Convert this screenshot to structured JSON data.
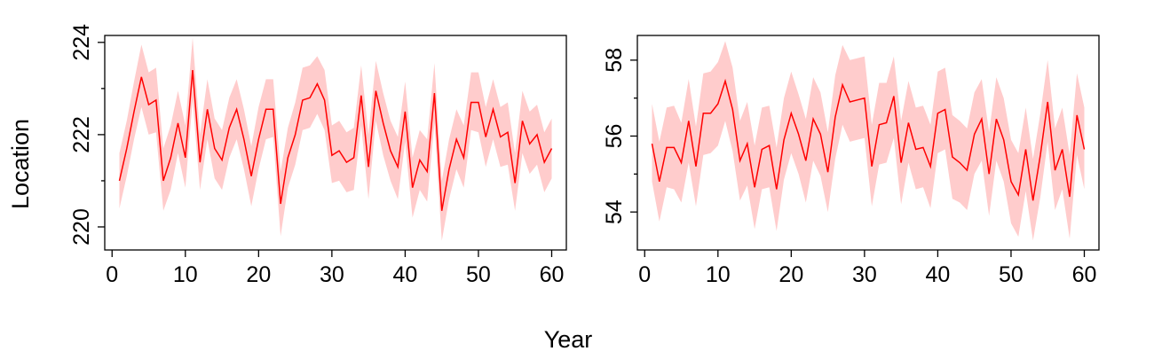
{
  "figure": {
    "xlabel": "Year",
    "ylabel": "Location"
  },
  "chart_data": [
    {
      "type": "line",
      "xlabel": "Year",
      "ylabel": "Location",
      "xlim": [
        -1,
        62
      ],
      "ylim": [
        219.5,
        224.15
      ],
      "xticks": [
        0,
        10,
        20,
        30,
        40,
        50,
        60
      ],
      "yticks": [
        220,
        222,
        224
      ],
      "minor_yticks": [
        221,
        223
      ],
      "colors": {
        "line": "#ff0000",
        "band": "#ffcccc"
      },
      "series": [
        {
          "x": [
            1,
            2,
            3,
            4,
            5,
            6,
            7,
            8,
            9,
            10,
            11,
            12,
            13,
            14,
            15,
            16,
            17,
            18,
            19,
            20,
            21,
            22,
            23,
            24,
            25,
            26,
            27,
            28,
            29,
            30,
            31,
            32,
            33,
            34,
            35,
            36,
            37,
            38,
            39,
            40,
            41,
            42,
            43,
            44,
            45,
            46,
            47,
            48,
            49,
            50,
            51,
            52,
            53,
            54,
            55,
            56,
            57,
            58,
            59,
            60
          ],
          "values": [
            221.0,
            221.7,
            222.5,
            223.25,
            222.65,
            222.75,
            221.0,
            221.5,
            222.25,
            221.5,
            223.4,
            221.4,
            222.55,
            221.7,
            221.45,
            222.15,
            222.55,
            221.9,
            221.1,
            221.9,
            222.55,
            222.55,
            220.5,
            221.5,
            222.0,
            222.75,
            222.8,
            223.1,
            222.75,
            221.55,
            221.65,
            221.4,
            221.5,
            222.85,
            221.3,
            222.95,
            222.25,
            221.65,
            221.3,
            222.5,
            220.85,
            221.45,
            221.2,
            222.9,
            220.35,
            221.25,
            221.9,
            221.5,
            222.7,
            222.7,
            221.95,
            222.55,
            221.95,
            222.05,
            220.95,
            222.3,
            221.8,
            222.0,
            221.4,
            221.7
          ],
          "lower": [
            220.4,
            221.1,
            221.9,
            222.6,
            222.0,
            222.05,
            220.35,
            220.8,
            221.6,
            220.85,
            222.75,
            220.8,
            221.9,
            221.05,
            220.8,
            221.5,
            221.9,
            221.25,
            220.45,
            221.25,
            221.9,
            221.95,
            219.8,
            220.85,
            221.35,
            222.1,
            222.15,
            222.45,
            222.1,
            220.95,
            221.0,
            220.75,
            220.8,
            222.2,
            220.6,
            222.3,
            221.55,
            221.0,
            220.6,
            221.85,
            220.2,
            220.8,
            220.55,
            222.25,
            219.7,
            220.6,
            221.25,
            220.85,
            222.1,
            222.05,
            221.3,
            221.9,
            221.3,
            221.35,
            220.35,
            221.6,
            221.15,
            221.35,
            220.75,
            221.05
          ],
          "upper": [
            221.6,
            222.3,
            223.15,
            223.95,
            223.35,
            223.45,
            221.7,
            222.2,
            222.95,
            222.2,
            224.1,
            222.0,
            223.2,
            222.35,
            222.1,
            222.8,
            223.2,
            222.55,
            221.75,
            222.6,
            223.2,
            223.2,
            221.2,
            222.15,
            222.7,
            223.45,
            223.5,
            223.7,
            223.4,
            222.2,
            222.3,
            222.05,
            222.15,
            223.5,
            222.0,
            223.6,
            222.9,
            222.3,
            221.95,
            223.15,
            221.5,
            222.1,
            221.9,
            223.55,
            221.0,
            221.9,
            222.55,
            222.2,
            223.35,
            223.35,
            222.6,
            223.2,
            222.6,
            222.7,
            221.6,
            222.95,
            222.5,
            222.65,
            222.05,
            222.35
          ]
        }
      ]
    },
    {
      "type": "line",
      "xlabel": "Year",
      "ylabel": "",
      "xlim": [
        -1,
        62
      ],
      "ylim": [
        53.0,
        58.65
      ],
      "xticks": [
        0,
        10,
        20,
        30,
        40,
        50,
        60
      ],
      "yticks": [
        54,
        56,
        58
      ],
      "minor_yticks": [
        55,
        57
      ],
      "colors": {
        "line": "#ff0000",
        "band": "#ffcccc"
      },
      "series": [
        {
          "x": [
            1,
            2,
            3,
            4,
            5,
            6,
            7,
            8,
            9,
            10,
            11,
            12,
            13,
            14,
            15,
            16,
            17,
            18,
            19,
            20,
            21,
            22,
            23,
            24,
            25,
            26,
            27,
            28,
            29,
            30,
            31,
            32,
            33,
            34,
            35,
            36,
            37,
            38,
            39,
            40,
            41,
            42,
            43,
            44,
            45,
            46,
            47,
            48,
            49,
            50,
            51,
            52,
            53,
            54,
            55,
            56,
            57,
            58,
            59,
            60
          ],
          "values": [
            55.8,
            54.8,
            55.7,
            55.7,
            55.3,
            56.4,
            55.2,
            56.6,
            56.6,
            56.85,
            57.45,
            56.7,
            55.35,
            55.8,
            54.65,
            55.65,
            55.75,
            54.6,
            55.9,
            56.6,
            56.05,
            55.35,
            56.45,
            56.05,
            55.05,
            56.5,
            57.35,
            56.9,
            56.95,
            57.0,
            55.2,
            56.3,
            56.35,
            57.05,
            55.3,
            56.35,
            55.65,
            55.7,
            55.2,
            56.6,
            56.7,
            55.45,
            55.3,
            55.1,
            56.05,
            56.45,
            55.0,
            56.45,
            55.9,
            54.8,
            54.45,
            55.65,
            54.3,
            55.5,
            56.9,
            55.1,
            55.65,
            54.4,
            56.55,
            55.65
          ],
          "lower": [
            54.8,
            53.75,
            54.65,
            54.6,
            54.25,
            55.3,
            54.15,
            55.5,
            55.55,
            55.75,
            56.4,
            55.6,
            54.3,
            54.7,
            53.55,
            54.6,
            54.65,
            53.5,
            54.85,
            55.55,
            55.0,
            54.25,
            55.35,
            54.95,
            54.0,
            55.4,
            56.3,
            55.85,
            55.9,
            55.95,
            54.15,
            55.25,
            55.3,
            55.95,
            54.2,
            55.3,
            54.6,
            54.65,
            54.1,
            55.55,
            55.65,
            54.35,
            54.25,
            54.05,
            55.0,
            55.35,
            53.9,
            55.35,
            54.8,
            53.7,
            53.35,
            54.55,
            53.25,
            54.4,
            55.85,
            54.05,
            54.6,
            53.3,
            55.5,
            54.6
          ],
          "upper": [
            56.85,
            55.85,
            56.75,
            56.8,
            56.35,
            57.5,
            56.25,
            57.65,
            57.7,
            57.95,
            58.5,
            57.8,
            56.4,
            56.9,
            55.75,
            56.75,
            56.8,
            55.7,
            57.0,
            57.7,
            57.1,
            56.45,
            57.55,
            57.15,
            56.1,
            57.6,
            58.4,
            58.0,
            58.05,
            58.1,
            56.3,
            57.4,
            57.4,
            58.1,
            56.4,
            57.45,
            56.75,
            56.8,
            56.3,
            57.7,
            57.8,
            56.55,
            56.4,
            56.2,
            57.15,
            57.5,
            56.1,
            57.55,
            57.0,
            55.9,
            55.55,
            56.75,
            55.4,
            56.6,
            58.0,
            56.2,
            56.75,
            55.5,
            57.65,
            56.75
          ]
        }
      ]
    }
  ]
}
